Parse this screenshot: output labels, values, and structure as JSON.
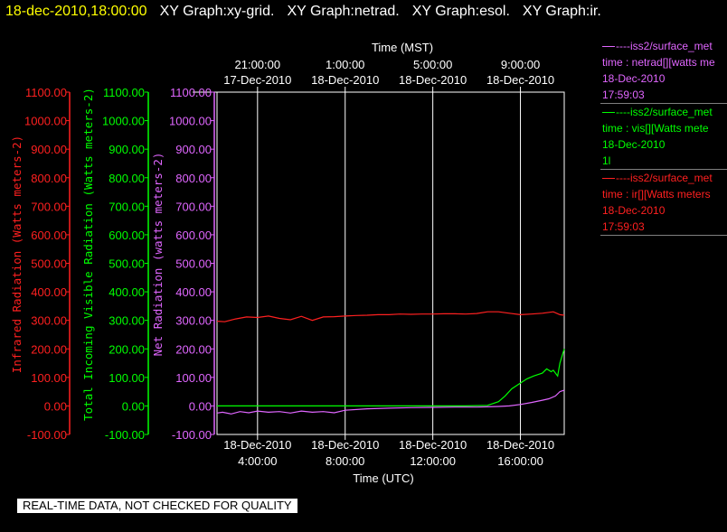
{
  "header": {
    "timestamp": "18-dec-2010,18:00:00",
    "titles": [
      "XY Graph:xy-grid.",
      "XY Graph:netrad.",
      "XY Graph:esol.",
      "XY Graph:ir."
    ]
  },
  "notice": "REAL-TIME DATA, NOT CHECKED FOR QUALITY",
  "legend": [
    {
      "lines": [
        "----iss2/surface_met",
        "time : netrad[][watts me",
        "18-Dec-2010",
        "17:59:03"
      ],
      "color": "#e066ff"
    },
    {
      "lines": [
        "----iss2/surface_met",
        "time : vis[][Watts mete",
        "18-Dec-2010",
        "1l"
      ],
      "color": "#00ff00"
    },
    {
      "lines": [
        "----iss2/surface_met",
        "time : ir[][Watts meters",
        "18-Dec-2010",
        "17:59:03"
      ],
      "color": "#ff2020"
    }
  ],
  "chart_data": {
    "type": "line",
    "x_top_title": "Time (MST)",
    "x_top_ticks": [
      {
        "t": "21:00:00",
        "d": "17-Dec-2010",
        "x_hours_utc": 4
      },
      {
        "t": "1:00:00",
        "d": "18-Dec-2010",
        "x_hours_utc": 8
      },
      {
        "t": "5:00:00",
        "d": "18-Dec-2010",
        "x_hours_utc": 12
      },
      {
        "t": "9:00:00",
        "d": "18-Dec-2010",
        "x_hours_utc": 16
      }
    ],
    "x_bottom_title": "Time (UTC)",
    "x_bottom_ticks": [
      {
        "d": "18-Dec-2010",
        "t": "4:00:00",
        "x_hours_utc": 4
      },
      {
        "d": "18-Dec-2010",
        "t": "8:00:00",
        "x_hours_utc": 8
      },
      {
        "d": "18-Dec-2010",
        "t": "12:00:00",
        "x_hours_utc": 12
      },
      {
        "d": "18-Dec-2010",
        "t": "16:00:00",
        "x_hours_utc": 16
      }
    ],
    "xlim_hours_utc": [
      2.15,
      18.0
    ],
    "ylim": [
      -100,
      1100
    ],
    "yticks": [
      1100,
      1000,
      900,
      800,
      700,
      600,
      500,
      400,
      300,
      200,
      100,
      0,
      -100
    ],
    "ytick_labels": [
      "1100.00",
      "1000.00",
      "900.00",
      "800.00",
      "700.00",
      "600.00",
      "500.00",
      "400.00",
      "300.00",
      "200.00",
      "100.00",
      "0.00",
      "-100.00"
    ],
    "y_axes": [
      {
        "label": "Infrared Radiation (Watts meters-2)",
        "color": "#ff2020",
        "labels_shown": true,
        "zero_shown": true
      },
      {
        "label": "Total Incoming Visible Radiation (Watts meters-2)",
        "color": "#00ff00",
        "labels_shown": true,
        "zero_shown": true
      },
      {
        "label": "Net Radiation (watts meters-2)",
        "color": "#e066ff",
        "labels_shown": true,
        "zero_shown": true
      }
    ],
    "series": [
      {
        "name": "ir",
        "color": "#ff2020",
        "x": [
          2.15,
          2.5,
          3.0,
          3.5,
          4.0,
          4.5,
          5.0,
          5.5,
          6.0,
          6.5,
          7.0,
          7.5,
          8.0,
          8.5,
          9.0,
          9.5,
          10.0,
          10.5,
          11.0,
          11.5,
          12.0,
          12.5,
          13.0,
          13.5,
          14.0,
          14.5,
          15.0,
          15.5,
          16.0,
          16.5,
          17.0,
          17.5,
          17.8,
          18.0
        ],
        "y": [
          297,
          295,
          305,
          312,
          310,
          315,
          307,
          302,
          314,
          300,
          312,
          313,
          315,
          317,
          318,
          320,
          320,
          322,
          321,
          322,
          322,
          323,
          323,
          322,
          324,
          330,
          330,
          325,
          320,
          322,
          325,
          330,
          320,
          318
        ]
      },
      {
        "name": "vis",
        "color": "#00ff00",
        "x": [
          2.15,
          4.0,
          6.0,
          8.0,
          10.0,
          12.0,
          13.5,
          14.5,
          15.0,
          15.3,
          15.6,
          16.0,
          16.3,
          16.6,
          16.8,
          17.0,
          17.2,
          17.4,
          17.5,
          17.7,
          17.8,
          18.0
        ],
        "y": [
          0,
          0,
          0,
          0,
          0,
          0,
          0,
          2,
          15,
          35,
          60,
          80,
          95,
          105,
          110,
          115,
          130,
          120,
          125,
          105,
          150,
          200
        ]
      },
      {
        "name": "netrad",
        "color": "#e066ff",
        "x": [
          2.15,
          2.4,
          2.8,
          3.2,
          3.6,
          4.0,
          4.5,
          5.0,
          5.5,
          6.0,
          6.5,
          7.0,
          7.5,
          8.0,
          9.0,
          10.0,
          11.0,
          12.0,
          13.0,
          14.0,
          14.5,
          15.0,
          15.5,
          16.0,
          16.5,
          17.0,
          17.3,
          17.6,
          17.8,
          18.0
        ],
        "y": [
          -25,
          -22,
          -28,
          -20,
          -24,
          -18,
          -22,
          -20,
          -25,
          -18,
          -22,
          -20,
          -24,
          -15,
          -10,
          -8,
          -6,
          -5,
          -4,
          -4,
          -3,
          -2,
          0,
          5,
          12,
          20,
          25,
          35,
          50,
          55
        ]
      }
    ]
  }
}
